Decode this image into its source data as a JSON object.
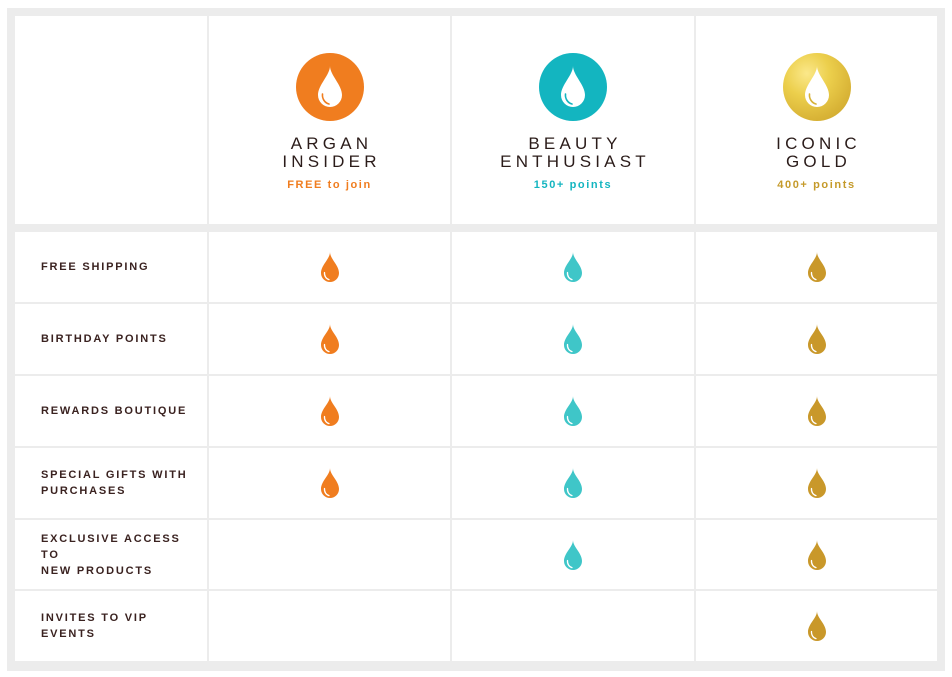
{
  "colors": {
    "argan": "#f07d1f",
    "beauty": "#13b5c0",
    "beauty_drop": "#3fc6c8",
    "gold": "#c9982a",
    "gold_text": "#c59a2a",
    "label": "#3a2220",
    "divider": "#ececec"
  },
  "tiers": [
    {
      "key": "argan",
      "name_line1": "ARGAN",
      "name_line2": "INSIDER",
      "requirement": "FREE to join",
      "icon": "water-drop-icon"
    },
    {
      "key": "beauty",
      "name_line1": "BEAUTY",
      "name_line2": "ENTHUSIAST",
      "requirement": "150+ points",
      "icon": "water-drop-icon"
    },
    {
      "key": "gold",
      "name_line1": "ICONIC",
      "name_line2": "GOLD",
      "requirement": "400+ points",
      "icon": "water-drop-icon"
    }
  ],
  "benefits": [
    {
      "line1": "FREE SHIPPING",
      "line2": "",
      "tiers": [
        true,
        true,
        true
      ]
    },
    {
      "line1": "BIRTHDAY POINTS",
      "line2": "",
      "tiers": [
        true,
        true,
        true
      ]
    },
    {
      "line1": "REWARDS BOUTIQUE",
      "line2": "",
      "tiers": [
        true,
        true,
        true
      ]
    },
    {
      "line1": "SPECIAL GIFTS WITH",
      "line2": "PURCHASES",
      "tiers": [
        true,
        true,
        true
      ]
    },
    {
      "line1": "EXCLUSIVE ACCESS TO",
      "line2": "NEW PRODUCTS",
      "tiers": [
        false,
        true,
        true
      ]
    },
    {
      "line1": "INVITES TO VIP",
      "line2": "EVENTS",
      "tiers": [
        false,
        false,
        true
      ]
    }
  ]
}
